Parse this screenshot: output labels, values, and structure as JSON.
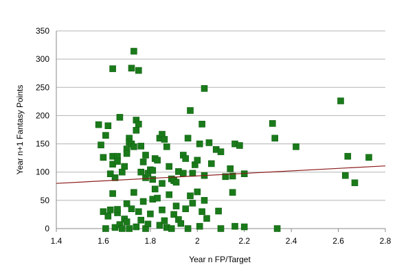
{
  "chart_data": {
    "type": "scatter",
    "title": "",
    "xlabel": "Year n FP/Target",
    "ylabel": "Year n+1 Fantasy Points",
    "xlim": [
      1.4,
      2.8
    ],
    "ylim": [
      0,
      350
    ],
    "xticks": [
      "1.4",
      "1.6",
      "1.8",
      "2",
      "2.2",
      "2.4",
      "2.6",
      "2.8"
    ],
    "yticks": [
      "0",
      "50",
      "100",
      "150",
      "200",
      "250",
      "300",
      "350"
    ],
    "grid": "horizontal",
    "legend": "none",
    "marker_color": "#1a7a1a",
    "marker_edge": "#0f5f0f",
    "trendline_color": "#8b1a1a",
    "trendline": {
      "x": [
        1.4,
        2.8
      ],
      "y": [
        80,
        111
      ]
    },
    "series": [
      {
        "points": [
          [
            1.58,
            184
          ],
          [
            1.59,
            148
          ],
          [
            1.6,
            126
          ],
          [
            1.61,
            165
          ],
          [
            1.62,
            182
          ],
          [
            1.63,
            97
          ],
          [
            1.64,
            128
          ],
          [
            1.64,
            114
          ],
          [
            1.65,
            90
          ],
          [
            1.66,
            128
          ],
          [
            1.66,
            119
          ],
          [
            1.67,
            197
          ],
          [
            1.68,
            100
          ],
          [
            1.69,
            110
          ],
          [
            1.7,
            141
          ],
          [
            1.7,
            133
          ],
          [
            1.71,
            160
          ],
          [
            1.71,
            153
          ],
          [
            1.72,
            150
          ],
          [
            1.73,
            145
          ],
          [
            1.74,
            174
          ],
          [
            1.74,
            192
          ],
          [
            1.75,
            185
          ],
          [
            1.76,
            146
          ],
          [
            1.77,
            118
          ],
          [
            1.78,
            90
          ],
          [
            1.79,
            98
          ],
          [
            1.8,
            104
          ],
          [
            1.81,
            103
          ],
          [
            1.82,
            124
          ],
          [
            1.83,
            121
          ],
          [
            1.84,
            160
          ],
          [
            1.85,
            167
          ],
          [
            1.86,
            158
          ],
          [
            1.87,
            145
          ],
          [
            1.88,
            110
          ],
          [
            1.89,
            88
          ],
          [
            1.9,
            85
          ],
          [
            1.91,
            82
          ],
          [
            1.92,
            101
          ],
          [
            1.94,
            130
          ],
          [
            1.95,
            124
          ],
          [
            1.96,
            160
          ],
          [
            1.97,
            209
          ],
          [
            1.98,
            98
          ],
          [
            1.99,
            113
          ],
          [
            2.0,
            121
          ],
          [
            2.01,
            150
          ],
          [
            2.02,
            185
          ],
          [
            2.03,
            94
          ],
          [
            2.05,
            152
          ],
          [
            2.06,
            115
          ],
          [
            2.08,
            140
          ],
          [
            2.1,
            136
          ],
          [
            2.12,
            92
          ],
          [
            2.14,
            106
          ],
          [
            2.15,
            93
          ],
          [
            2.16,
            150
          ],
          [
            2.18,
            147
          ],
          [
            2.2,
            97
          ],
          [
            2.32,
            186
          ],
          [
            2.33,
            160
          ],
          [
            2.42,
            145
          ],
          [
            2.61,
            226
          ],
          [
            2.63,
            94
          ],
          [
            2.64,
            128
          ],
          [
            2.67,
            81
          ],
          [
            2.73,
            126
          ],
          [
            1.64,
            283
          ],
          [
            1.72,
            284
          ],
          [
            1.73,
            314
          ],
          [
            1.75,
            280
          ],
          [
            2.03,
            248
          ],
          [
            1.6,
            30
          ],
          [
            1.61,
            0
          ],
          [
            1.62,
            22
          ],
          [
            1.63,
            33
          ],
          [
            1.64,
            62
          ],
          [
            1.65,
            2
          ],
          [
            1.66,
            28
          ],
          [
            1.67,
            7
          ],
          [
            1.68,
            0
          ],
          [
            1.69,
            17
          ],
          [
            1.7,
            44
          ],
          [
            1.71,
            0
          ],
          [
            1.72,
            35
          ],
          [
            1.73,
            64
          ],
          [
            1.74,
            3
          ],
          [
            1.75,
            30
          ],
          [
            1.76,
            15
          ],
          [
            1.77,
            48
          ],
          [
            1.78,
            0
          ],
          [
            1.79,
            8
          ],
          [
            1.8,
            26
          ],
          [
            1.81,
            52
          ],
          [
            1.82,
            70
          ],
          [
            1.83,
            54
          ],
          [
            1.84,
            6
          ],
          [
            1.85,
            33
          ],
          [
            1.86,
            14
          ],
          [
            1.87,
            2
          ],
          [
            1.88,
            60
          ],
          [
            1.89,
            0
          ],
          [
            1.9,
            25
          ],
          [
            1.91,
            40
          ],
          [
            1.92,
            16
          ],
          [
            1.93,
            9
          ],
          [
            1.95,
            35
          ],
          [
            1.96,
            0
          ],
          [
            1.97,
            58
          ],
          [
            1.98,
            45
          ],
          [
            2.0,
            65
          ],
          [
            2.01,
            4
          ],
          [
            2.02,
            30
          ],
          [
            2.03,
            50
          ],
          [
            2.04,
            18
          ],
          [
            2.09,
            31
          ],
          [
            2.1,
            0
          ],
          [
            2.15,
            64
          ],
          [
            2.16,
            4
          ],
          [
            2.2,
            3
          ],
          [
            2.34,
            0
          ],
          [
            1.66,
            34
          ],
          [
            1.7,
            12
          ],
          [
            1.76,
            100
          ],
          [
            1.81,
            87
          ],
          [
            1.85,
            80
          ],
          [
            1.78,
            130
          ],
          [
            1.94,
            98
          ]
        ]
      }
    ]
  }
}
